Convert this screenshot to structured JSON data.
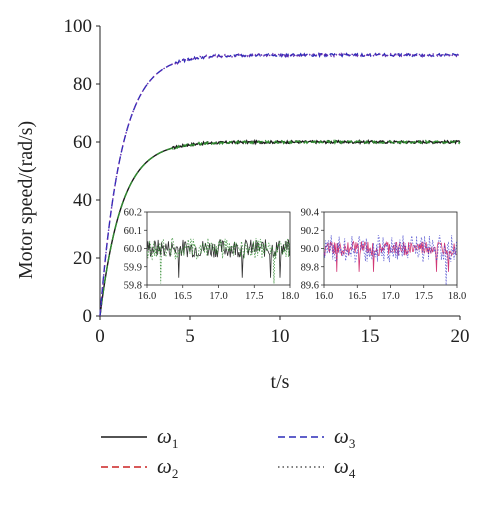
{
  "chart_data": [
    {
      "type": "line",
      "title": "",
      "xlabel": "t/s",
      "ylabel": "Motor speed/(rad/s)",
      "xlim": [
        0,
        20
      ],
      "ylim": [
        0,
        100
      ],
      "x_ticks": [
        "0",
        "5",
        "10",
        "15",
        "20"
      ],
      "y_ticks": [
        "0",
        "20",
        "40",
        "60",
        "80",
        "100"
      ],
      "grid": false,
      "legend_position": "bottom",
      "series": [
        {
          "name": "ω1",
          "color": "#1a1a1a",
          "style": "solid",
          "steady_value": 60,
          "x": [
            0,
            0.5,
            1,
            1.5,
            2,
            2.5,
            3,
            3.5,
            4,
            5,
            6,
            8,
            10,
            15,
            20
          ],
          "values": [
            0,
            20.7,
            34.3,
            43.2,
            49.2,
            53.1,
            55.5,
            57.1,
            58.2,
            59.3,
            59.7,
            59.95,
            60,
            60,
            60
          ]
        },
        {
          "name": "ω2",
          "color": "#cc2222",
          "style": "dashed",
          "steady_value": 60,
          "x": [
            0,
            0.5,
            1,
            1.5,
            2,
            2.5,
            3,
            3.5,
            4,
            5,
            6,
            8,
            10,
            15,
            20
          ],
          "values": [
            0,
            20.7,
            34.3,
            43.2,
            49.2,
            53.1,
            55.5,
            57.1,
            58.2,
            59.3,
            59.7,
            59.95,
            60,
            60,
            60
          ]
        },
        {
          "name": "ω3",
          "color": "#2b2bb8",
          "style": "dashed",
          "steady_value": 90,
          "x": [
            0,
            0.5,
            1,
            1.5,
            2,
            2.5,
            3,
            3.5,
            4,
            5,
            6,
            8,
            10,
            15,
            20
          ],
          "values": [
            0,
            31,
            51.5,
            64.8,
            73.8,
            79.6,
            83.3,
            85.7,
            87.3,
            89,
            89.6,
            89.95,
            90,
            90,
            90
          ]
        },
        {
          "name": "ω4",
          "color": "#555555",
          "style": "dotted",
          "steady_value": 90,
          "x": [
            0,
            0.5,
            1,
            1.5,
            2,
            2.5,
            3,
            3.5,
            4,
            5,
            6,
            8,
            10,
            15,
            20
          ],
          "values": [
            0,
            31,
            51.5,
            64.8,
            73.8,
            79.6,
            83.3,
            85.7,
            87.3,
            89,
            89.6,
            89.95,
            90,
            90,
            90
          ]
        }
      ]
    },
    {
      "type": "line",
      "title": "",
      "xlim": [
        16.0,
        18.0
      ],
      "ylim": [
        59.8,
        60.2
      ],
      "x_ticks": [
        "16.0",
        "16.5",
        "17.0",
        "17.5",
        "18.0"
      ],
      "y_ticks": [
        "59.8",
        "59.9",
        "60.0",
        "60.1",
        "60.2"
      ],
      "series": [
        {
          "name": "ω1",
          "color": "#1a1a1a",
          "mean": 60.0,
          "amplitude": 0.05
        },
        {
          "name": "ω2",
          "color": "#2f8a2f",
          "mean": 60.0,
          "amplitude": 0.06
        }
      ]
    },
    {
      "type": "line",
      "title": "",
      "xlim": [
        16.0,
        18.0
      ],
      "ylim": [
        89.6,
        90.4
      ],
      "x_ticks": [
        "16.0",
        "16.5",
        "17.0",
        "17.5",
        "18.0"
      ],
      "y_ticks": [
        "89.6",
        "89.8",
        "90.0",
        "90.2",
        "90.4"
      ],
      "series": [
        {
          "name": "ω3",
          "color": "#cc2266",
          "mean": 90.0,
          "amplitude": 0.08
        },
        {
          "name": "ω4",
          "color": "#4444cc",
          "mean": 90.0,
          "amplitude": 0.15
        }
      ]
    }
  ],
  "legend": [
    {
      "symbol": "ω",
      "sub": "1",
      "color": "#1a1a1a",
      "style": "solid"
    },
    {
      "symbol": "ω",
      "sub": "2",
      "color": "#cc2222",
      "style": "dashed"
    },
    {
      "symbol": "ω",
      "sub": "3",
      "color": "#2b2bb8",
      "style": "dashed"
    },
    {
      "symbol": "ω",
      "sub": "4",
      "color": "#555555",
      "style": "dotted"
    }
  ]
}
